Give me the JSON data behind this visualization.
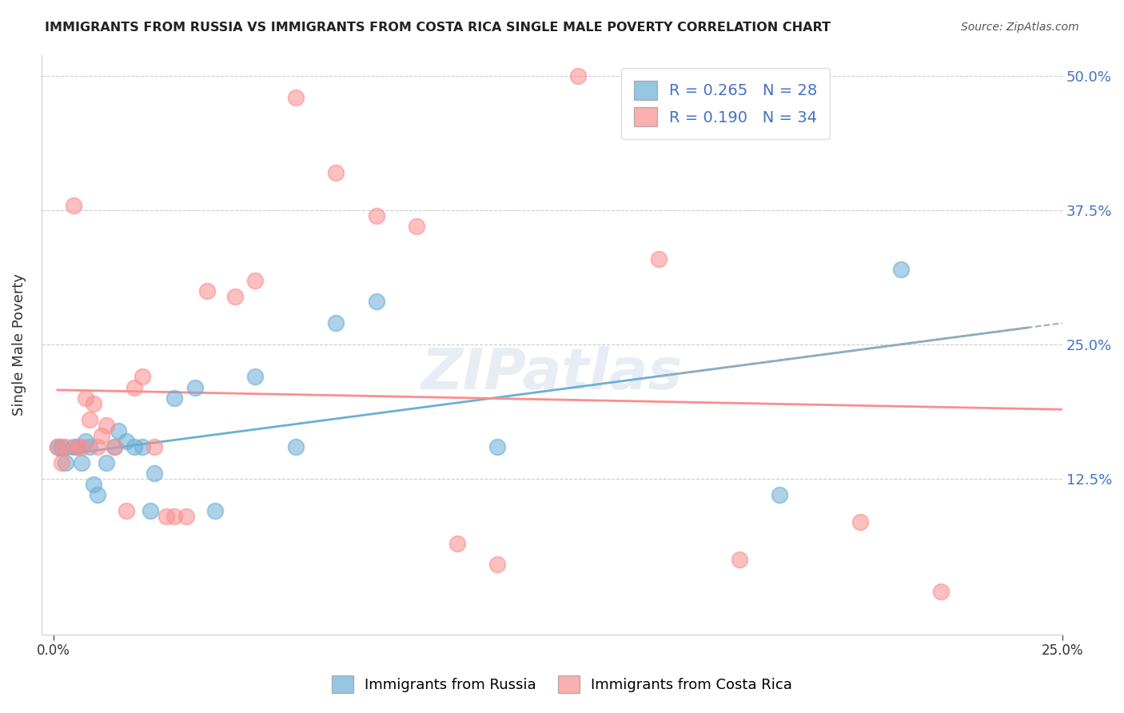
{
  "title": "IMMIGRANTS FROM RUSSIA VS IMMIGRANTS FROM COSTA RICA SINGLE MALE POVERTY CORRELATION CHART",
  "source": "Source: ZipAtlas.com",
  "ylabel_label": "Single Male Poverty",
  "xlim": [
    0.0,
    0.25
  ],
  "ylim": [
    -0.02,
    0.52
  ],
  "russia_color": "#6baed6",
  "costarica_color": "#fc8d8d",
  "russia_R": 0.265,
  "russia_N": 28,
  "costarica_R": 0.19,
  "costarica_N": 34,
  "russia_x": [
    0.001,
    0.002,
    0.003,
    0.005,
    0.006,
    0.007,
    0.008,
    0.009,
    0.01,
    0.011,
    0.013,
    0.015,
    0.016,
    0.018,
    0.02,
    0.022,
    0.024,
    0.025,
    0.03,
    0.035,
    0.04,
    0.05,
    0.06,
    0.07,
    0.08,
    0.11,
    0.18,
    0.21
  ],
  "russia_y": [
    0.155,
    0.155,
    0.14,
    0.155,
    0.155,
    0.14,
    0.16,
    0.155,
    0.12,
    0.11,
    0.14,
    0.155,
    0.17,
    0.16,
    0.155,
    0.155,
    0.095,
    0.13,
    0.2,
    0.21,
    0.095,
    0.22,
    0.155,
    0.27,
    0.29,
    0.155,
    0.11,
    0.32
  ],
  "costarica_x": [
    0.001,
    0.002,
    0.003,
    0.005,
    0.006,
    0.007,
    0.008,
    0.009,
    0.01,
    0.011,
    0.012,
    0.013,
    0.015,
    0.018,
    0.02,
    0.022,
    0.025,
    0.028,
    0.03,
    0.033,
    0.038,
    0.045,
    0.05,
    0.06,
    0.07,
    0.08,
    0.09,
    0.1,
    0.11,
    0.13,
    0.15,
    0.17,
    0.2,
    0.22
  ],
  "costarica_y": [
    0.155,
    0.14,
    0.155,
    0.38,
    0.155,
    0.155,
    0.2,
    0.18,
    0.195,
    0.155,
    0.165,
    0.175,
    0.155,
    0.095,
    0.21,
    0.22,
    0.155,
    0.09,
    0.09,
    0.09,
    0.3,
    0.295,
    0.31,
    0.48,
    0.41,
    0.37,
    0.36,
    0.065,
    0.045,
    0.5,
    0.33,
    0.05,
    0.085,
    0.02
  ],
  "background_color": "#ffffff",
  "grid_color": "#cccccc",
  "watermark": "ZIPatlas",
  "watermark_color": "#d0dce8",
  "y_ticks": [
    0.125,
    0.25,
    0.375,
    0.5
  ],
  "y_tick_labels": [
    "12.5%",
    "25.0%",
    "37.5%",
    "50.0%"
  ]
}
